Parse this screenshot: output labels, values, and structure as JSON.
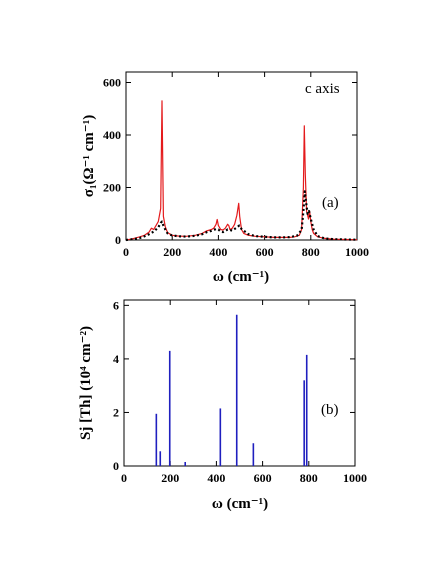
{
  "chart_data": [
    {
      "type": "line",
      "annotation": "c axis",
      "panel_label": "(a)",
      "xlabel": "ω (cm⁻¹)",
      "ylabel": "σ₁(Ω⁻¹ cm⁻¹)",
      "xlim": [
        0,
        1000
      ],
      "ylim": [
        0,
        640
      ],
      "x_ticks": [
        0,
        200,
        400,
        600,
        800,
        1000
      ],
      "y_ticks": [
        0,
        200,
        400,
        600
      ],
      "grid": false,
      "series": [
        {
          "color": "#e41a1c",
          "style": "solid",
          "x": [
            0,
            30,
            60,
            80,
            100,
            110,
            120,
            130,
            140,
            150,
            156,
            162,
            170,
            180,
            200,
            230,
            260,
            300,
            330,
            350,
            370,
            380,
            390,
            395,
            400,
            410,
            420,
            430,
            440,
            445,
            450,
            460,
            470,
            480,
            488,
            492,
            500,
            510,
            530,
            560,
            600,
            640,
            680,
            710,
            730,
            750,
            760,
            768,
            772,
            776,
            782,
            790,
            795,
            800,
            806,
            812,
            830,
            860,
            900,
            950,
            1000
          ],
          "y": [
            0,
            5,
            12,
            18,
            30,
            45,
            40,
            55,
            70,
            120,
            530,
            90,
            50,
            28,
            18,
            15,
            14,
            18,
            25,
            35,
            40,
            45,
            60,
            78,
            55,
            40,
            38,
            45,
            60,
            55,
            40,
            45,
            60,
            95,
            140,
            90,
            40,
            25,
            18,
            14,
            12,
            10,
            10,
            10,
            12,
            18,
            40,
            200,
            435,
            250,
            110,
            80,
            110,
            70,
            40,
            25,
            12,
            6,
            3,
            2,
            1
          ]
        },
        {
          "color": "#000000",
          "style": "dotted",
          "x": [
            0,
            30,
            60,
            80,
            100,
            120,
            140,
            150,
            156,
            162,
            170,
            180,
            200,
            230,
            260,
            300,
            330,
            350,
            370,
            390,
            400,
            410,
            420,
            440,
            450,
            460,
            480,
            490,
            500,
            530,
            560,
            600,
            640,
            680,
            710,
            740,
            760,
            768,
            774,
            780,
            786,
            792,
            800,
            812,
            830,
            860,
            900,
            950,
            1000
          ],
          "y": [
            0,
            3,
            8,
            14,
            22,
            32,
            48,
            65,
            70,
            55,
            40,
            25,
            17,
            14,
            13,
            16,
            22,
            30,
            35,
            42,
            40,
            32,
            30,
            40,
            38,
            36,
            48,
            55,
            42,
            22,
            15,
            12,
            10,
            10,
            11,
            16,
            38,
            110,
            185,
            140,
            100,
            110,
            80,
            40,
            15,
            6,
            3,
            2,
            1
          ]
        }
      ]
    },
    {
      "type": "bar",
      "panel_label": "(b)",
      "xlabel": "ω (cm⁻¹)",
      "ylabel": "Sj [Th]  (10⁴ cm⁻²)",
      "xlim": [
        0,
        1000
      ],
      "ylim": [
        0,
        6.2
      ],
      "x_ticks": [
        0,
        200,
        400,
        600,
        800,
        1000
      ],
      "y_ticks": [
        0,
        2,
        4,
        6
      ],
      "grid": false,
      "color": "#1f1fbf",
      "x": [
        140,
        157,
        198,
        265,
        417,
        488,
        560,
        780,
        791
      ],
      "values": [
        1.95,
        0.55,
        4.3,
        0.15,
        2.15,
        5.65,
        0.85,
        3.2,
        4.15
      ]
    }
  ]
}
